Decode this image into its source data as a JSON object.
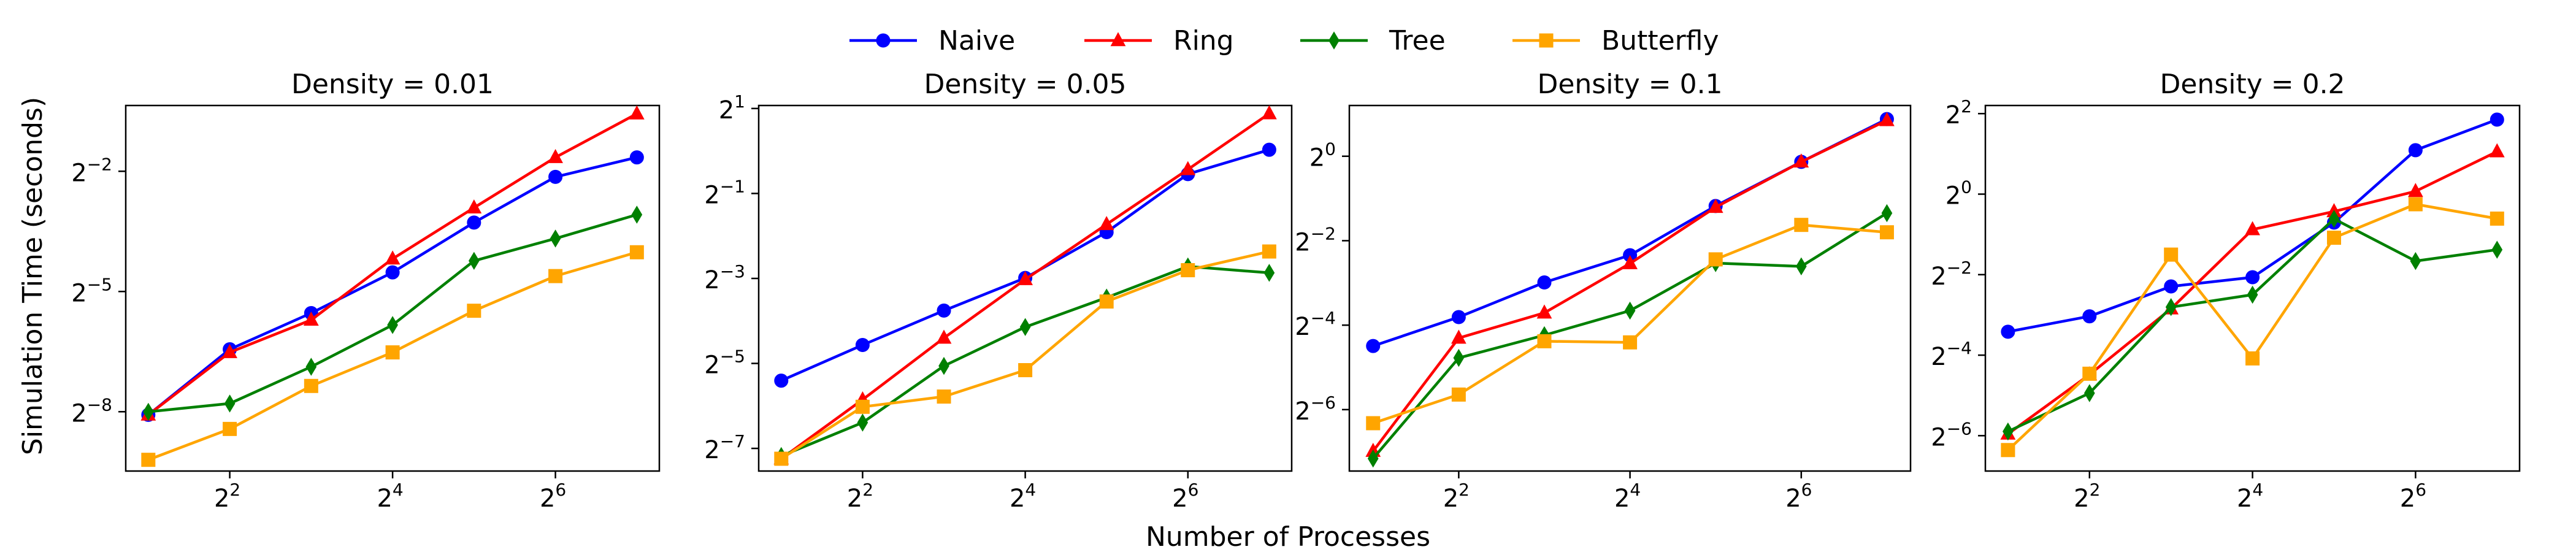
{
  "figure": {
    "xlabel": "Number of Processes",
    "ylabel": "Simulation Time (seconds)"
  },
  "legend": {
    "placement": "top-center",
    "entries": [
      {
        "name": "Naive",
        "color": "#0000ff",
        "marker": "circle"
      },
      {
        "name": "Ring",
        "color": "#ff0000",
        "marker": "triangle"
      },
      {
        "name": "Tree",
        "color": "#008000",
        "marker": "diamond"
      },
      {
        "name": "Butterfly",
        "color": "#ffa500",
        "marker": "square"
      }
    ]
  },
  "chart_data": [
    {
      "type": "line",
      "title": "Density = 0.01",
      "x_scale": "log2",
      "y_scale": "log2",
      "x": [
        2,
        4,
        8,
        16,
        32,
        64,
        128
      ],
      "x_ticks": [
        4,
        16,
        64
      ],
      "y_ticks": [
        0.25,
        0.03125,
        0.00390625
      ],
      "xlim": [
        1.65,
        155
      ],
      "ylim": [
        0.0014,
        0.78
      ],
      "series": [
        {
          "name": "Naive",
          "values": [
            0.0037,
            0.0115,
            0.0215,
            0.0435,
            0.103,
            0.227,
            0.318
          ]
        },
        {
          "name": "Ring",
          "values": [
            0.0037,
            0.0109,
            0.0191,
            0.055,
            0.133,
            0.318,
            0.676
          ]
        },
        {
          "name": "Tree",
          "values": [
            0.0039,
            0.0045,
            0.0085,
            0.0175,
            0.0531,
            0.0781,
            0.118
          ]
        },
        {
          "name": "Butterfly",
          "values": [
            0.0017,
            0.0029,
            0.0061,
            0.0109,
            0.0224,
            0.0408,
            0.0616
          ]
        }
      ]
    },
    {
      "type": "line",
      "title": "Density = 0.05",
      "x_scale": "log2",
      "y_scale": "log2",
      "x": [
        2,
        4,
        8,
        16,
        32,
        64,
        128
      ],
      "x_ticks": [
        4,
        16,
        64
      ],
      "y_ticks": [
        2,
        0.5,
        0.125,
        0.03125,
        0.0078125
      ],
      "xlim": [
        1.65,
        155
      ],
      "ylim": [
        0.0054,
        2.1
      ],
      "series": [
        {
          "name": "Naive",
          "values": [
            0.0236,
            0.0422,
            0.074,
            0.126,
            0.266,
            0.686,
            1.02
          ]
        },
        {
          "name": "Ring",
          "values": [
            0.0066,
            0.0173,
            0.0473,
            0.123,
            0.302,
            0.74,
            1.84
          ]
        },
        {
          "name": "Tree",
          "values": [
            0.0069,
            0.0119,
            0.03,
            0.0566,
            0.0915,
            0.152,
            0.137
          ]
        },
        {
          "name": "Butterfly",
          "values": [
            0.0066,
            0.0154,
            0.0182,
            0.028,
            0.0858,
            0.143,
            0.194
          ]
        }
      ]
    },
    {
      "type": "line",
      "title": "Density = 0.1",
      "x_scale": "log2",
      "y_scale": "log2",
      "x": [
        2,
        4,
        8,
        16,
        32,
        64,
        128
      ],
      "x_ticks": [
        4,
        16,
        64
      ],
      "y_ticks": [
        1,
        0.25,
        0.0625,
        0.015625
      ],
      "xlim": [
        1.65,
        155
      ],
      "ylim": [
        0.0057,
        2.3
      ],
      "series": [
        {
          "name": "Naive",
          "values": [
            0.0444,
            0.0713,
            0.126,
            0.197,
            0.442,
            0.912,
            1.84
          ]
        },
        {
          "name": "Ring",
          "values": [
            0.0079,
            0.0506,
            0.0765,
            0.172,
            0.433,
            0.912,
            1.8
          ]
        },
        {
          "name": "Tree",
          "values": [
            0.007,
            0.0365,
            0.053,
            0.0793,
            0.173,
            0.164,
            0.393
          ]
        },
        {
          "name": "Butterfly",
          "values": [
            0.0125,
            0.02,
            0.048,
            0.0471,
            0.184,
            0.324,
            0.287
          ]
        }
      ]
    },
    {
      "type": "line",
      "title": "Density = 0.2",
      "x_scale": "log2",
      "y_scale": "log2",
      "x": [
        2,
        4,
        8,
        16,
        32,
        64,
        128
      ],
      "x_ticks": [
        4,
        16,
        64
      ],
      "y_ticks": [
        4,
        1,
        0.25,
        0.0625,
        0.015625
      ],
      "xlim": [
        1.65,
        155
      ],
      "ylim": [
        0.0085,
        4.6
      ],
      "series": [
        {
          "name": "Naive",
          "values": [
            0.0936,
            0.122,
            0.204,
            0.239,
            0.613,
            2.13,
            3.61
          ]
        },
        {
          "name": "Ring",
          "values": [
            0.0161,
            0.0447,
            0.139,
            0.544,
            0.742,
            1.05,
            2.08
          ]
        },
        {
          "name": "Tree",
          "values": [
            0.0168,
            0.0325,
            0.143,
            0.177,
            0.653,
            0.316,
            0.384
          ]
        },
        {
          "name": "Butterfly",
          "values": [
            0.0122,
            0.0454,
            0.353,
            0.0591,
            0.472,
            0.84,
            0.656
          ]
        }
      ]
    }
  ]
}
